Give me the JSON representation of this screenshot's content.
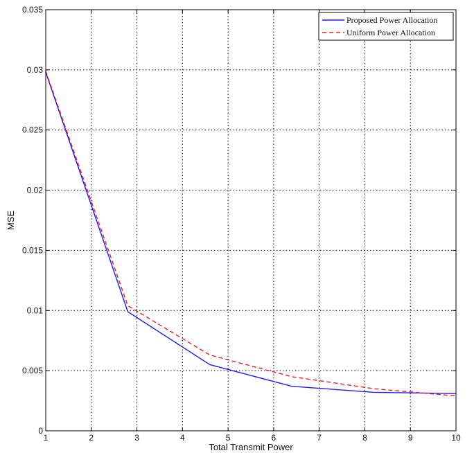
{
  "chart_data": {
    "type": "line",
    "title": "",
    "xlabel": "Total Transmit Power",
    "ylabel": "MSE",
    "xlim": [
      1,
      10
    ],
    "ylim": [
      0,
      0.035
    ],
    "x_ticks": [
      1,
      2,
      3,
      4,
      5,
      6,
      7,
      8,
      9,
      10
    ],
    "x_tick_labels": [
      "1",
      "2",
      "3",
      "4",
      "5",
      "6",
      "7",
      "8",
      "9",
      "10"
    ],
    "y_ticks": [
      0,
      0.005,
      0.01,
      0.015,
      0.02,
      0.025,
      0.03,
      0.035
    ],
    "y_tick_labels": [
      "0",
      "0.005",
      "0.01",
      "0.015",
      "0.02",
      "0.025",
      "0.03",
      "0.035"
    ],
    "grid": true,
    "grid_style": "dotted",
    "legend_position": "top-right",
    "series": [
      {
        "name": "Proposed Power Allocation",
        "color": "#1a1aff",
        "line_style": "solid",
        "x": [
          1,
          2.8,
          4.6,
          6.4,
          8.2,
          10
        ],
        "y": [
          0.0298,
          0.0099,
          0.0055,
          0.0037,
          0.0032,
          0.0031
        ]
      },
      {
        "name": "Uniform Power Allocation",
        "color": "#ff1a1a",
        "line_style": "dashed",
        "x": [
          1,
          2.8,
          4.6,
          6.4,
          8.2,
          10
        ],
        "y": [
          0.0299,
          0.0104,
          0.0063,
          0.0045,
          0.0035,
          0.0029
        ]
      }
    ]
  }
}
